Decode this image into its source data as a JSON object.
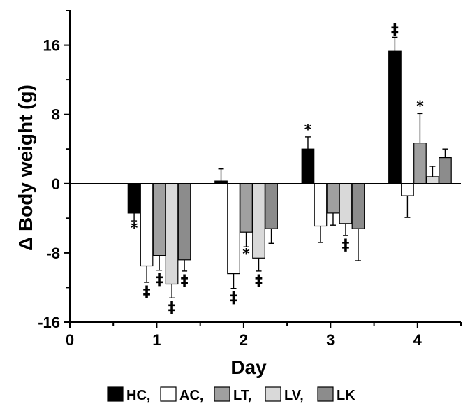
{
  "chart_data": {
    "type": "bar",
    "title": "",
    "xlabel": "Day",
    "ylabel": "Δ Body weight (g)",
    "xlim": [
      0,
      4.5
    ],
    "ylim": [
      -16,
      20
    ],
    "x_ticks": [
      0,
      1,
      2,
      3,
      4
    ],
    "x_tick_labels": [
      "0",
      "1",
      "2",
      "3",
      "4"
    ],
    "y_ticks": [
      -16,
      -8,
      0,
      8,
      16
    ],
    "y_tick_labels": [
      "-16",
      "-8",
      "0",
      "8",
      "16"
    ],
    "grid": false,
    "legend_position": "bottom",
    "legend_labels": [
      "HC,",
      "AC,",
      "LT,",
      "LV,",
      "LK"
    ],
    "series": [
      {
        "name": "HC",
        "color": "#000000",
        "x": [
          1,
          2,
          3,
          4
        ],
        "values": [
          -3.4,
          0.3,
          4.0,
          15.3
        ],
        "errors": [
          0.9,
          1.4,
          1.4,
          1.6
        ],
        "annotations": [
          "*",
          "",
          "*",
          "‡"
        ]
      },
      {
        "name": "AC",
        "color": "#ffffff",
        "x": [
          1,
          2,
          3,
          4
        ],
        "values": [
          -9.5,
          -10.4,
          -4.9,
          -1.4
        ],
        "errors": [
          1.9,
          1.7,
          1.9,
          2.5
        ],
        "annotations": [
          "‡",
          "‡",
          "",
          ""
        ]
      },
      {
        "name": "LT",
        "color": "#a0a0a0",
        "x": [
          1,
          2,
          3,
          4
        ],
        "values": [
          -8.3,
          -5.6,
          -3.4,
          4.7
        ],
        "errors": [
          1.7,
          1.7,
          1.4,
          3.4
        ],
        "annotations": [
          "‡",
          "*",
          "",
          "*"
        ]
      },
      {
        "name": "LV",
        "color": "#d9d9d9",
        "x": [
          1,
          2,
          3,
          4
        ],
        "values": [
          -11.6,
          -8.6,
          -4.6,
          0.8
        ],
        "errors": [
          1.6,
          1.5,
          1.4,
          1.2
        ],
        "annotations": [
          "‡",
          "‡",
          "‡",
          ""
        ]
      },
      {
        "name": "LK",
        "color": "#8c8c8c",
        "x": [
          1,
          2,
          3,
          4
        ],
        "values": [
          -8.8,
          -5.2,
          -5.2,
          3.0
        ],
        "errors": [
          1.3,
          1.7,
          3.7,
          1.0
        ],
        "annotations": [
          "‡",
          "",
          "",
          ""
        ]
      }
    ]
  }
}
